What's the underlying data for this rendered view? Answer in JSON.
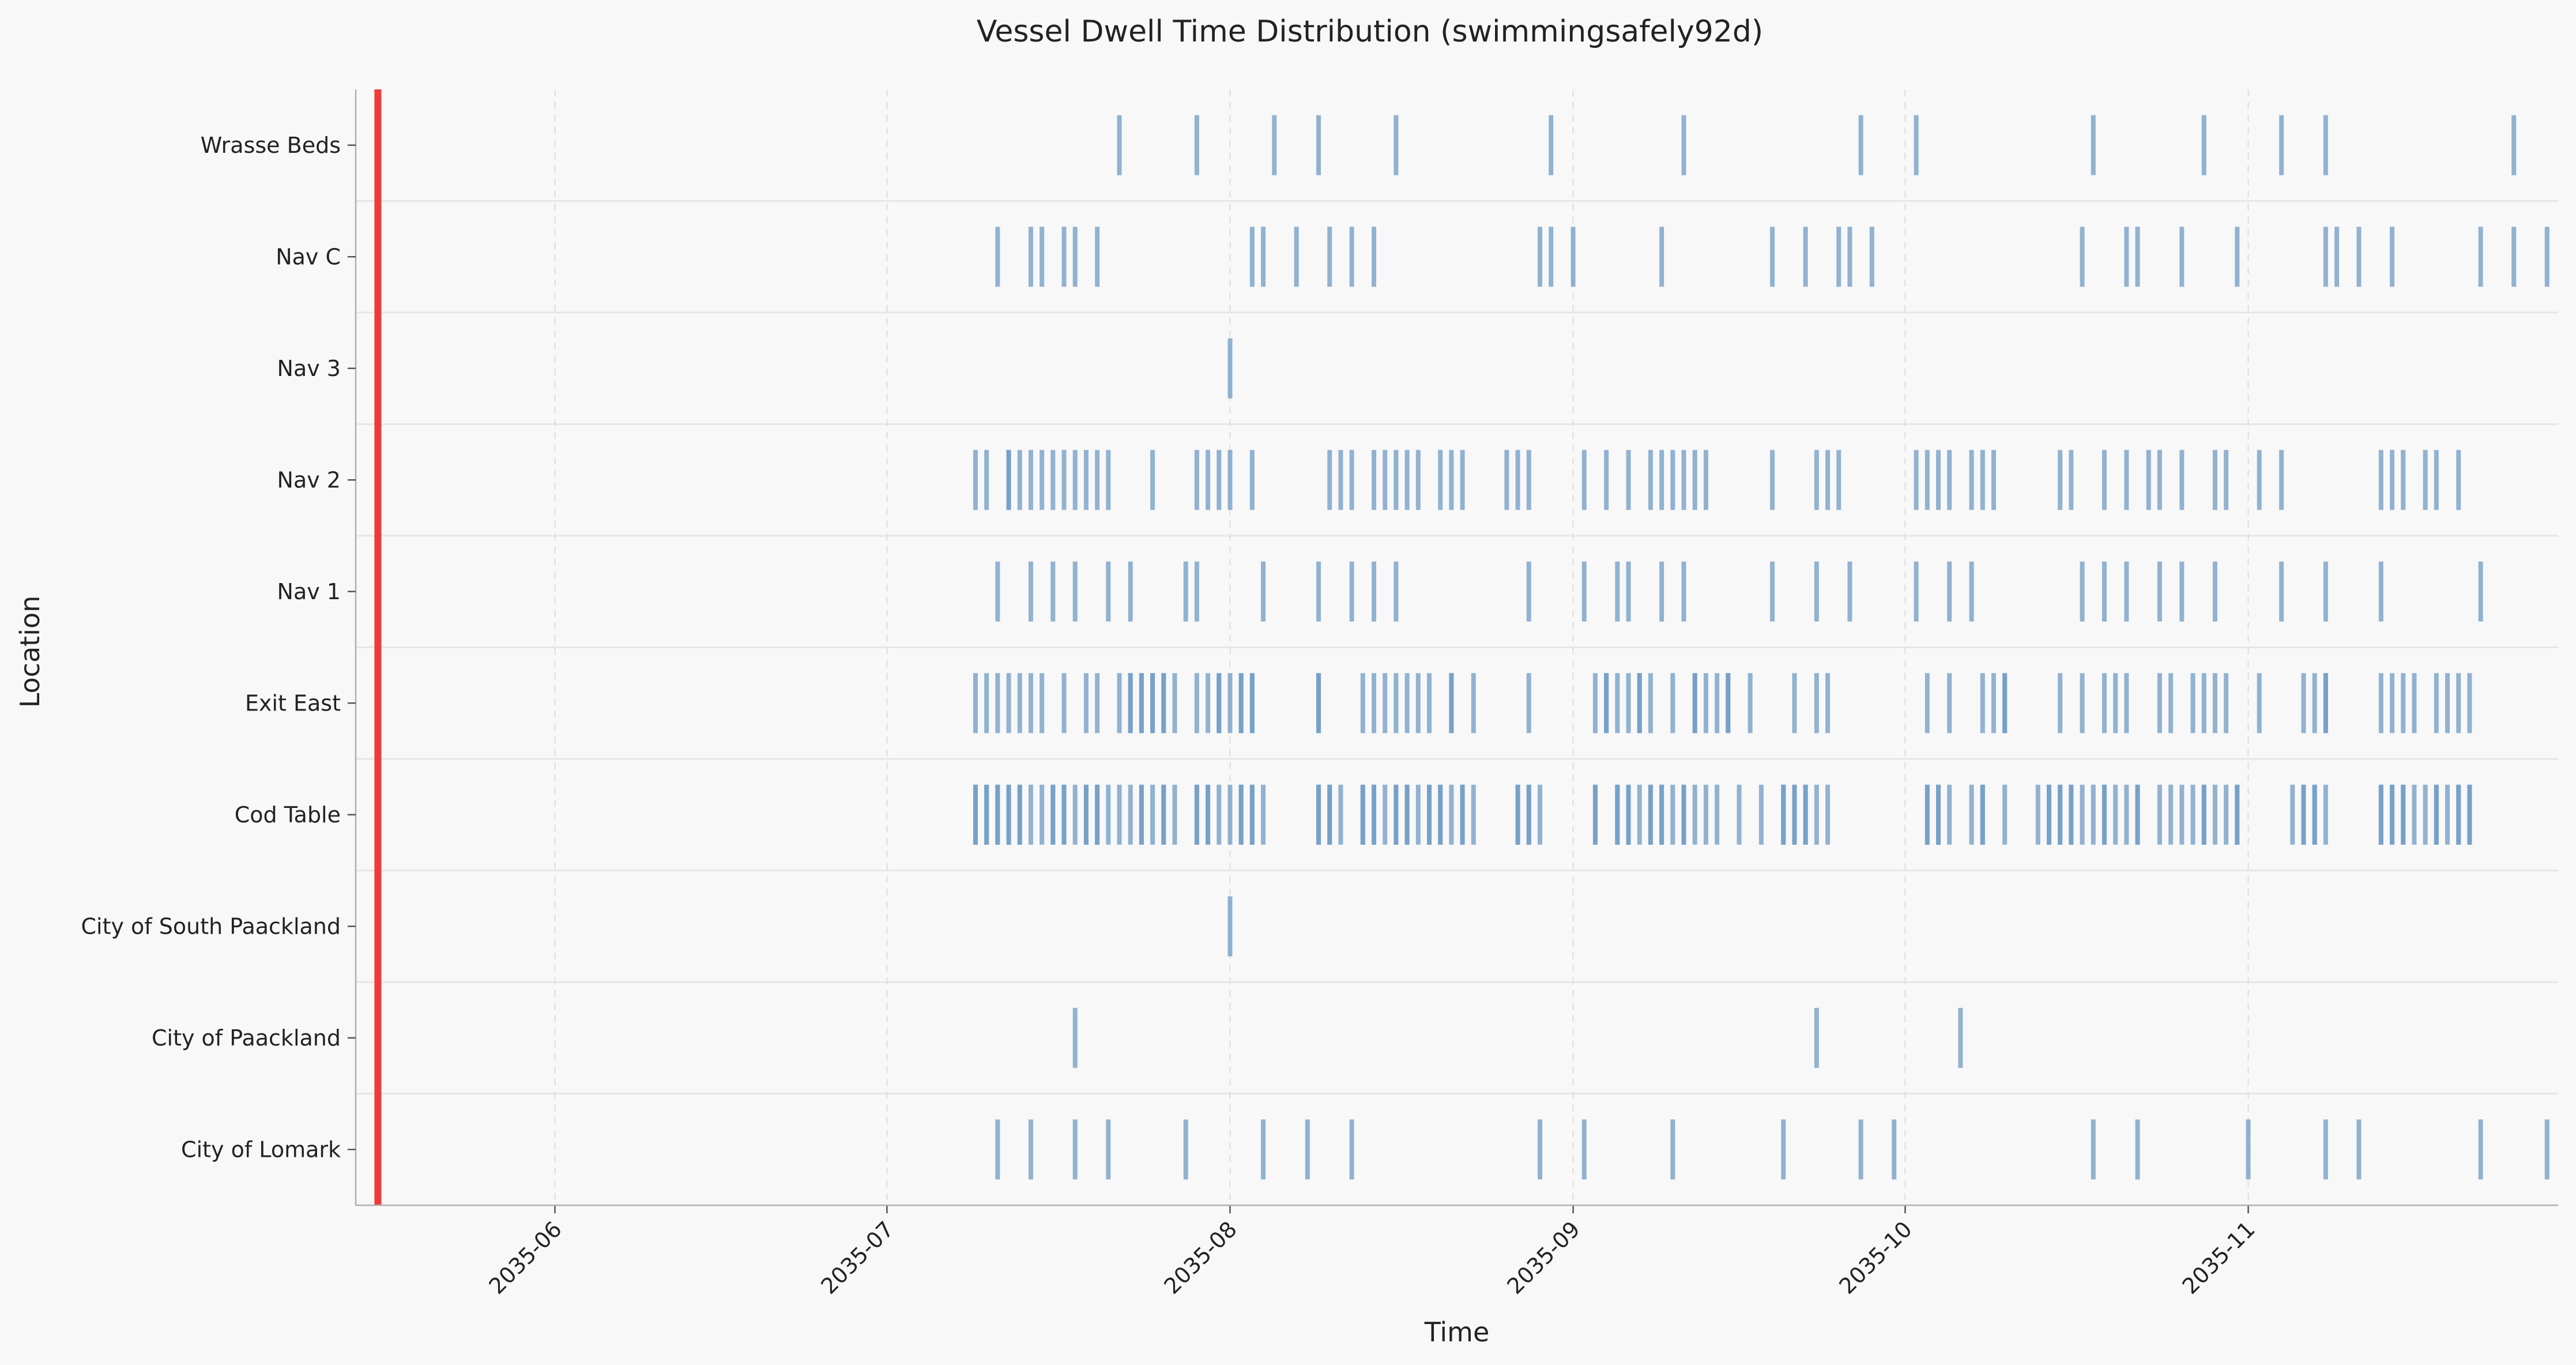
{
  "chart_data": {
    "type": "event-strip",
    "title": "Vessel Dwell Time Distribution (swimmingsafely92d)",
    "xlabel": "Time",
    "ylabel": "Location",
    "xlim": [
      "2035-05-14",
      "2035-11-29"
    ],
    "x_ticks": [
      "2035-06",
      "2035-07",
      "2035-08",
      "2035-09",
      "2035-10",
      "2035-11"
    ],
    "x_tick_dates": [
      "2035-06-01",
      "2035-07-01",
      "2035-08-01",
      "2035-09-01",
      "2035-10-01",
      "2035-11-01"
    ],
    "categories": [
      "City of Lomark",
      "City of Paackland",
      "City of South Paackland",
      "Cod Table",
      "Exit East",
      "Nav 1",
      "Nav 2",
      "Nav 3",
      "Nav C",
      "Wrasse Beds"
    ],
    "reference_line": {
      "date": "2035-05-16",
      "color": "#f03a3a"
    },
    "mark_color": "#6f9bc4",
    "grid": true,
    "series": [
      {
        "values": [
          "2035-07-11",
          "2035-07-14",
          "2035-07-18",
          "2035-07-21",
          "2035-07-28",
          "2035-08-04",
          "2035-08-08",
          "2035-08-12",
          "2035-08-29",
          "2035-09-02",
          "2035-09-10",
          "2035-09-20",
          "2035-09-27",
          "2035-09-30",
          "2035-10-18",
          "2035-10-22",
          "2035-11-01",
          "2035-11-08",
          "2035-11-11",
          "2035-11-22",
          "2035-11-28"
        ]
      },
      {
        "values": [
          "2035-07-18",
          "2035-09-23",
          "2035-10-06"
        ]
      },
      {
        "values": [
          "2035-08-01"
        ]
      },
      {
        "values": [
          "2035-07-09",
          "2035-07-09",
          "2035-07-10",
          "2035-07-10",
          "2035-07-11",
          "2035-07-11",
          "2035-07-12",
          "2035-07-12",
          "2035-07-13",
          "2035-07-13",
          "2035-07-14",
          "2035-07-15",
          "2035-07-16",
          "2035-07-16",
          "2035-07-17",
          "2035-07-17",
          "2035-07-18",
          "2035-07-19",
          "2035-07-19",
          "2035-07-20",
          "2035-07-20",
          "2035-07-21",
          "2035-07-22",
          "2035-07-23",
          "2035-07-24",
          "2035-07-24",
          "2035-07-25",
          "2035-07-26",
          "2035-07-26",
          "2035-07-27",
          "2035-07-29",
          "2035-07-29",
          "2035-07-30",
          "2035-07-30",
          "2035-07-31",
          "2035-08-01",
          "2035-08-02",
          "2035-08-02",
          "2035-08-03",
          "2035-08-03",
          "2035-08-04",
          "2035-08-09",
          "2035-08-09",
          "2035-08-10",
          "2035-08-10",
          "2035-08-11",
          "2035-08-13",
          "2035-08-13",
          "2035-08-14",
          "2035-08-14",
          "2035-08-15",
          "2035-08-16",
          "2035-08-16",
          "2035-08-17",
          "2035-08-17",
          "2035-08-18",
          "2035-08-19",
          "2035-08-19",
          "2035-08-20",
          "2035-08-20",
          "2035-08-21",
          "2035-08-22",
          "2035-08-22",
          "2035-08-23",
          "2035-08-27",
          "2035-08-27",
          "2035-08-28",
          "2035-08-28",
          "2035-08-29",
          "2035-09-03",
          "2035-09-03",
          "2035-09-05",
          "2035-09-05",
          "2035-09-06",
          "2035-09-06",
          "2035-09-07",
          "2035-09-08",
          "2035-09-08",
          "2035-09-09",
          "2035-09-09",
          "2035-09-10",
          "2035-09-11",
          "2035-09-11",
          "2035-09-12",
          "2035-09-13",
          "2035-09-14",
          "2035-09-16",
          "2035-09-18",
          "2035-09-20",
          "2035-09-20",
          "2035-09-21",
          "2035-09-21",
          "2035-09-22",
          "2035-09-22",
          "2035-09-23",
          "2035-09-24",
          "2035-10-03",
          "2035-10-03",
          "2035-10-04",
          "2035-10-04",
          "2035-10-05",
          "2035-10-07",
          "2035-10-08",
          "2035-10-08",
          "2035-10-10",
          "2035-10-13",
          "2035-10-14",
          "2035-10-14",
          "2035-10-15",
          "2035-10-15",
          "2035-10-16",
          "2035-10-16",
          "2035-10-17",
          "2035-10-18",
          "2035-10-19",
          "2035-10-19",
          "2035-10-20",
          "2035-10-21",
          "2035-10-22",
          "2035-10-22",
          "2035-10-24",
          "2035-10-25",
          "2035-10-26",
          "2035-10-27",
          "2035-10-28",
          "2035-10-28",
          "2035-10-29",
          "2035-10-30",
          "2035-10-31",
          "2035-10-31",
          "2035-11-05",
          "2035-11-06",
          "2035-11-06",
          "2035-11-07",
          "2035-11-07",
          "2035-11-08",
          "2035-11-13",
          "2035-11-13",
          "2035-11-14",
          "2035-11-14",
          "2035-11-15",
          "2035-11-15",
          "2035-11-16",
          "2035-11-17",
          "2035-11-18",
          "2035-11-18",
          "2035-11-19",
          "2035-11-20",
          "2035-11-20",
          "2035-11-21",
          "2035-11-21"
        ]
      },
      {
        "values": [
          "2035-07-09",
          "2035-07-10",
          "2035-07-11",
          "2035-07-12",
          "2035-07-13",
          "2035-07-14",
          "2035-07-15",
          "2035-07-17",
          "2035-07-19",
          "2035-07-20",
          "2035-07-22",
          "2035-07-23",
          "2035-07-23",
          "2035-07-24",
          "2035-07-24",
          "2035-07-25",
          "2035-07-25",
          "2035-07-26",
          "2035-07-26",
          "2035-07-27",
          "2035-07-29",
          "2035-07-30",
          "2035-07-31",
          "2035-07-31",
          "2035-08-01",
          "2035-08-02",
          "2035-08-02",
          "2035-08-03",
          "2035-08-03",
          "2035-08-09",
          "2035-08-09",
          "2035-08-13",
          "2035-08-14",
          "2035-08-15",
          "2035-08-16",
          "2035-08-17",
          "2035-08-18",
          "2035-08-19",
          "2035-08-21",
          "2035-08-21",
          "2035-08-23",
          "2035-08-28",
          "2035-09-03",
          "2035-09-04",
          "2035-09-04",
          "2035-09-05",
          "2035-09-06",
          "2035-09-07",
          "2035-09-07",
          "2035-09-08",
          "2035-09-10",
          "2035-09-12",
          "2035-09-12",
          "2035-09-13",
          "2035-09-14",
          "2035-09-15",
          "2035-09-15",
          "2035-09-17",
          "2035-09-21",
          "2035-09-23",
          "2035-09-24",
          "2035-10-03",
          "2035-10-05",
          "2035-10-08",
          "2035-10-09",
          "2035-10-10",
          "2035-10-10",
          "2035-10-15",
          "2035-10-17",
          "2035-10-19",
          "2035-10-20",
          "2035-10-21",
          "2035-10-24",
          "2035-10-25",
          "2035-10-27",
          "2035-10-28",
          "2035-10-29",
          "2035-10-30",
          "2035-11-02",
          "2035-11-06",
          "2035-11-07",
          "2035-11-08",
          "2035-11-08",
          "2035-11-13",
          "2035-11-14",
          "2035-11-15",
          "2035-11-16",
          "2035-11-18",
          "2035-11-19",
          "2035-11-20",
          "2035-11-21"
        ]
      },
      {
        "values": [
          "2035-07-11",
          "2035-07-14",
          "2035-07-16",
          "2035-07-18",
          "2035-07-21",
          "2035-07-23",
          "2035-07-28",
          "2035-07-29",
          "2035-08-04",
          "2035-08-09",
          "2035-08-12",
          "2035-08-14",
          "2035-08-16",
          "2035-08-28",
          "2035-09-02",
          "2035-09-05",
          "2035-09-06",
          "2035-09-09",
          "2035-09-11",
          "2035-09-19",
          "2035-09-23",
          "2035-09-26",
          "2035-10-02",
          "2035-10-05",
          "2035-10-07",
          "2035-10-17",
          "2035-10-19",
          "2035-10-21",
          "2035-10-24",
          "2035-10-26",
          "2035-10-29",
          "2035-11-04",
          "2035-11-08",
          "2035-11-13",
          "2035-11-22"
        ]
      },
      {
        "values": [
          "2035-07-09",
          "2035-07-10",
          "2035-07-12",
          "2035-07-12",
          "2035-07-13",
          "2035-07-14",
          "2035-07-15",
          "2035-07-16",
          "2035-07-17",
          "2035-07-18",
          "2035-07-19",
          "2035-07-20",
          "2035-07-21",
          "2035-07-25",
          "2035-07-29",
          "2035-07-30",
          "2035-07-31",
          "2035-08-01",
          "2035-08-03",
          "2035-08-10",
          "2035-08-11",
          "2035-08-12",
          "2035-08-14",
          "2035-08-15",
          "2035-08-16",
          "2035-08-17",
          "2035-08-18",
          "2035-08-20",
          "2035-08-21",
          "2035-08-22",
          "2035-08-26",
          "2035-08-27",
          "2035-08-28",
          "2035-09-02",
          "2035-09-04",
          "2035-09-06",
          "2035-09-08",
          "2035-09-09",
          "2035-09-10",
          "2035-09-11",
          "2035-09-12",
          "2035-09-13",
          "2035-09-19",
          "2035-09-23",
          "2035-09-24",
          "2035-09-25",
          "2035-10-02",
          "2035-10-03",
          "2035-10-04",
          "2035-10-05",
          "2035-10-07",
          "2035-10-08",
          "2035-10-09",
          "2035-10-15",
          "2035-10-16",
          "2035-10-19",
          "2035-10-21",
          "2035-10-23",
          "2035-10-24",
          "2035-10-26",
          "2035-10-29",
          "2035-10-30",
          "2035-11-02",
          "2035-11-04",
          "2035-11-13",
          "2035-11-14",
          "2035-11-15",
          "2035-11-17",
          "2035-11-18",
          "2035-11-20"
        ]
      },
      {
        "values": [
          "2035-08-01"
        ]
      },
      {
        "values": [
          "2035-07-11",
          "2035-07-14",
          "2035-07-15",
          "2035-07-17",
          "2035-07-18",
          "2035-07-20",
          "2035-08-03",
          "2035-08-04",
          "2035-08-07",
          "2035-08-10",
          "2035-08-12",
          "2035-08-14",
          "2035-08-29",
          "2035-08-30",
          "2035-09-01",
          "2035-09-09",
          "2035-09-19",
          "2035-09-22",
          "2035-09-25",
          "2035-09-26",
          "2035-09-28",
          "2035-10-17",
          "2035-10-21",
          "2035-10-22",
          "2035-10-26",
          "2035-10-31",
          "2035-11-08",
          "2035-11-09",
          "2035-11-11",
          "2035-11-14",
          "2035-11-22",
          "2035-11-25",
          "2035-11-28"
        ]
      },
      {
        "values": [
          "2035-07-22",
          "2035-07-29",
          "2035-08-05",
          "2035-08-09",
          "2035-08-16",
          "2035-08-30",
          "2035-09-11",
          "2035-09-27",
          "2035-10-02",
          "2035-10-18",
          "2035-10-28",
          "2035-11-04",
          "2035-11-08",
          "2035-11-25"
        ]
      }
    ]
  }
}
